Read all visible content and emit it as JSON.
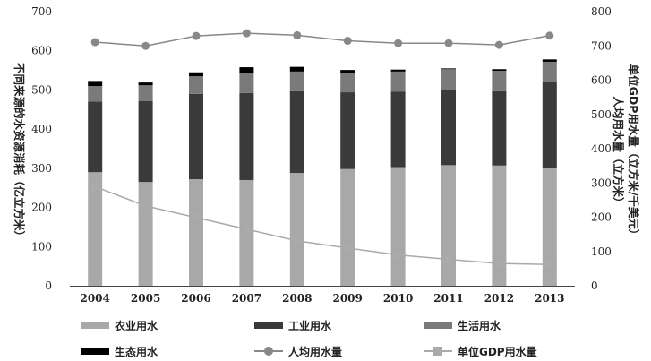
{
  "chart_data": {
    "type": "bar",
    "categories": [
      "2004",
      "2005",
      "2006",
      "2007",
      "2008",
      "2009",
      "2010",
      "2011",
      "2012",
      "2013"
    ],
    "left_axis": {
      "label": "不同来源的水资源消耗（亿立方米）",
      "ylim": [
        0,
        700
      ],
      "ticks": [
        "0",
        "100",
        "200",
        "300",
        "400",
        "500",
        "600",
        "700"
      ]
    },
    "right_axis": {
      "label_line1": "单位GDP用水量（立方米/千美元）",
      "label_line2": "人均用水量（立方米）",
      "ylim": [
        0,
        800
      ],
      "ticks": [
        "0",
        "100",
        "200",
        "300",
        "400",
        "500",
        "600",
        "700",
        "800"
      ]
    },
    "series": [
      {
        "name": "农业用水",
        "type": "stacked-bar",
        "axis": "left",
        "color": "#a8a8a8",
        "values": [
          290,
          265,
          272,
          270,
          288,
          298,
          303,
          308,
          307,
          302
        ]
      },
      {
        "name": "工业用水",
        "type": "stacked-bar",
        "axis": "left",
        "color": "#3a3a3a",
        "values": [
          180,
          207,
          218,
          222,
          209,
          196,
          193,
          193,
          190,
          218
        ]
      },
      {
        "name": "生活用水",
        "type": "stacked-bar",
        "axis": "left",
        "color": "#7a7a7a",
        "values": [
          40,
          40,
          45,
          50,
          50,
          50,
          51,
          52,
          52,
          52
        ]
      },
      {
        "name": "生态用水",
        "type": "stacked-bar",
        "axis": "left",
        "color": "#000000",
        "values": [
          13,
          7,
          10,
          16,
          12,
          7,
          5,
          2,
          4,
          6
        ]
      },
      {
        "name": "人均用水量",
        "type": "line",
        "axis": "right",
        "color": "#888888",
        "marker": "circle",
        "values": [
          711,
          700,
          729,
          737,
          731,
          715,
          708,
          708,
          703,
          730
        ]
      },
      {
        "name": "单位GDP用水量",
        "type": "line",
        "axis": "right",
        "color": "#aaaaaa",
        "marker": "square",
        "values": [
          289,
          233,
          199,
          165,
          131,
          110,
          90,
          77,
          65,
          62
        ]
      }
    ],
    "grid": false,
    "legend_position": "bottom"
  }
}
